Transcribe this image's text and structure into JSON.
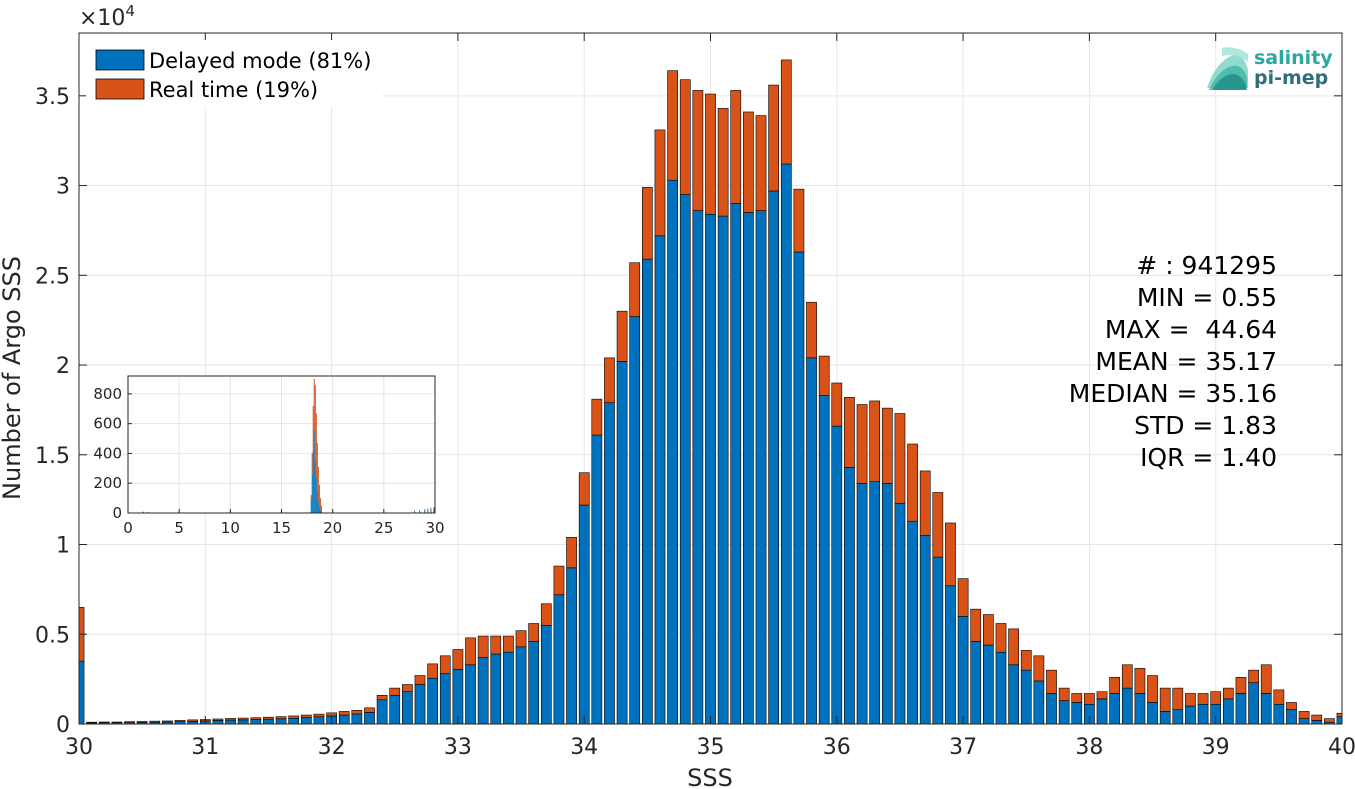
{
  "chart_data": {
    "type": "bar",
    "stacked": true,
    "xlabel": "SSS",
    "ylabel": "Number of Argo SSS",
    "exponent_label": "×10",
    "exponent_power": "4",
    "xlim": [
      30,
      40
    ],
    "ylim": [
      0,
      38500
    ],
    "grid": true,
    "bin_width": 0.1,
    "x": [
      30.0,
      30.1,
      30.2,
      30.3,
      30.4,
      30.5,
      30.6,
      30.7,
      30.8,
      30.9,
      31.0,
      31.1,
      31.2,
      31.3,
      31.4,
      31.5,
      31.6,
      31.7,
      31.8,
      31.9,
      32.0,
      32.1,
      32.2,
      32.3,
      32.4,
      32.5,
      32.6,
      32.7,
      32.8,
      32.9,
      33.0,
      33.1,
      33.2,
      33.3,
      33.4,
      33.5,
      33.6,
      33.7,
      33.8,
      33.9,
      34.0,
      34.1,
      34.2,
      34.3,
      34.4,
      34.5,
      34.6,
      34.7,
      34.8,
      34.9,
      35.0,
      35.1,
      35.2,
      35.3,
      35.4,
      35.5,
      35.6,
      35.7,
      35.8,
      35.9,
      36.0,
      36.1,
      36.2,
      36.3,
      36.4,
      36.5,
      36.6,
      36.7,
      36.8,
      36.9,
      37.0,
      37.1,
      37.2,
      37.3,
      37.4,
      37.5,
      37.6,
      37.7,
      37.8,
      37.9,
      38.0,
      38.1,
      38.2,
      38.3,
      38.4,
      38.5,
      38.6,
      38.7,
      38.8,
      38.9,
      39.0,
      39.1,
      39.2,
      39.3,
      39.4,
      39.5,
      39.6,
      39.7,
      39.8,
      39.9,
      40.0
    ],
    "series": [
      {
        "name": "Delayed mode (81%)",
        "color": "#0072BD",
        "values": [
          3500,
          60,
          70,
          70,
          80,
          90,
          100,
          110,
          130,
          150,
          170,
          200,
          220,
          230,
          250,
          270,
          290,
          320,
          360,
          400,
          450,
          500,
          560,
          650,
          1350,
          1600,
          1800,
          2200,
          2550,
          2800,
          3050,
          3300,
          3700,
          3900,
          4000,
          4300,
          4600,
          5500,
          7200,
          8700,
          12200,
          16100,
          17900,
          20200,
          22700,
          25900,
          27200,
          30300,
          29500,
          28600,
          28400,
          28300,
          29000,
          28500,
          28600,
          29700,
          31200,
          26300,
          20400,
          18300,
          16600,
          14300,
          13400,
          13500,
          13400,
          12300,
          11300,
          10500,
          9300,
          7700,
          6000,
          4600,
          4400,
          4000,
          3300,
          3000,
          2400,
          1700,
          1300,
          1200,
          1100,
          1400,
          1700,
          2000,
          1700,
          1200,
          700,
          800,
          1000,
          1100,
          1100,
          1400,
          1700,
          2300,
          1700,
          1100,
          800,
          300,
          200,
          100,
          400
        ]
      },
      {
        "name": "Real time (19%)",
        "color": "#D95319",
        "values": [
          3000,
          40,
          40,
          40,
          50,
          50,
          60,
          60,
          70,
          80,
          80,
          80,
          90,
          100,
          100,
          110,
          120,
          130,
          140,
          150,
          170,
          200,
          200,
          250,
          250,
          400,
          400,
          500,
          800,
          1000,
          1100,
          1500,
          1200,
          1000,
          900,
          900,
          1000,
          1200,
          1600,
          1700,
          1800,
          2000,
          2500,
          2800,
          3000,
          4000,
          5900,
          6100,
          6400,
          6700,
          6700,
          6000,
          6300,
          5600,
          5300,
          5900,
          5800,
          3500,
          3100,
          2200,
          2400,
          3900,
          4400,
          4500,
          4200,
          5000,
          4300,
          3600,
          3600,
          3500,
          2100,
          1800,
          1700,
          1600,
          2000,
          1100,
          1400,
          1300,
          700,
          500,
          600,
          400,
          900,
          1300,
          1400,
          1500,
          1300,
          1200,
          700,
          600,
          700,
          600,
          900,
          700,
          1600,
          800,
          400,
          400,
          300,
          200,
          200
        ]
      }
    ],
    "legend": {
      "placement": "top-left",
      "items": [
        {
          "label": "Delayed mode (81%)",
          "color": "#0072BD"
        },
        {
          "label": "Real time (19%)",
          "color": "#D95319"
        }
      ]
    },
    "x_ticks": [
      "30",
      "31",
      "32",
      "33",
      "34",
      "35",
      "36",
      "37",
      "38",
      "39",
      "40"
    ],
    "y_ticks": [
      "0",
      "0.5",
      "1",
      "1.5",
      "2",
      "2.5",
      "3",
      "3.5"
    ],
    "annotations": [
      "# : 941295",
      "MIN = 0.55",
      "MAX =  44.64",
      "MEAN = 35.17",
      "MEDIAN = 35.16",
      "STD = 1.83",
      "IQR = 1.40"
    ],
    "inset": {
      "type": "bar",
      "xlim": [
        0,
        30
      ],
      "ylim": [
        0,
        920
      ],
      "x_ticks": [
        "0",
        "5",
        "10",
        "15",
        "20",
        "25",
        "30"
      ],
      "y_ticks": [
        "0",
        "200",
        "400",
        "600",
        "800"
      ],
      "peak": [
        {
          "x": 17.9,
          "delayed": 80,
          "real": 40
        },
        {
          "x": 18.0,
          "delayed": 260,
          "real": 140
        },
        {
          "x": 18.1,
          "delayed": 420,
          "real": 300
        },
        {
          "x": 18.2,
          "delayed": 560,
          "real": 340
        },
        {
          "x": 18.3,
          "delayed": 350,
          "real": 510
        },
        {
          "x": 18.4,
          "delayed": 240,
          "real": 430
        },
        {
          "x": 18.5,
          "delayed": 150,
          "real": 320
        },
        {
          "x": 18.6,
          "delayed": 80,
          "real": 230
        },
        {
          "x": 18.7,
          "delayed": 40,
          "real": 150
        },
        {
          "x": 18.8,
          "delayed": 20,
          "real": 80
        },
        {
          "x": 18.9,
          "delayed": 10,
          "real": 40
        }
      ],
      "tail": [
        {
          "x": 1.5,
          "delayed": 8,
          "real": 2
        },
        {
          "x": 2.0,
          "delayed": 6,
          "real": 2
        },
        {
          "x": 28.0,
          "delayed": 12,
          "real": 4
        },
        {
          "x": 28.5,
          "delayed": 15,
          "real": 5
        },
        {
          "x": 29.0,
          "delayed": 20,
          "real": 6
        },
        {
          "x": 29.3,
          "delayed": 25,
          "real": 6
        },
        {
          "x": 29.6,
          "delayed": 28,
          "real": 8
        },
        {
          "x": 29.9,
          "delayed": 30,
          "real": 10
        }
      ]
    }
  },
  "logo": {
    "line1": "salinity",
    "line2": "pi-mep",
    "color1": "#2aa9a0",
    "color2": "#2f6f7a"
  }
}
